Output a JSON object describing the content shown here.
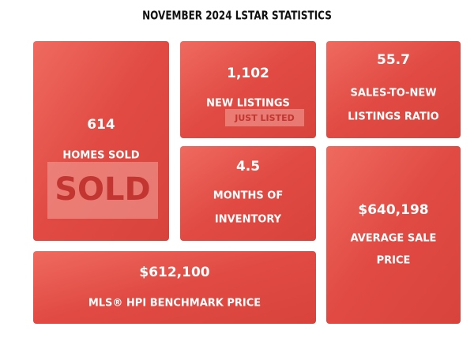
{
  "title": "NOVEMBER 2024 LSTAR STATISTICS",
  "tiles": [
    {
      "value": "614",
      "label": [
        "HOMES SOLD"
      ],
      "sign_text": "SOLD"
    },
    {
      "value": "1,102",
      "label": [
        "NEW LISTINGS"
      ],
      "sign_text": "JUST LISTED"
    },
    {
      "value": "55.7",
      "label": [
        "SALES-TO-NEW",
        "LISTINGS RATIO"
      ]
    },
    {
      "value": "4.5",
      "label": [
        "MONTHS OF",
        "INVENTORY"
      ]
    },
    {
      "value": "$640,198",
      "label": [
        "AVERAGE SALE",
        "PRICE"
      ]
    },
    {
      "value": "$612,100",
      "label": [
        "MLS® HPI BENCHMARK PRICE"
      ]
    }
  ]
}
